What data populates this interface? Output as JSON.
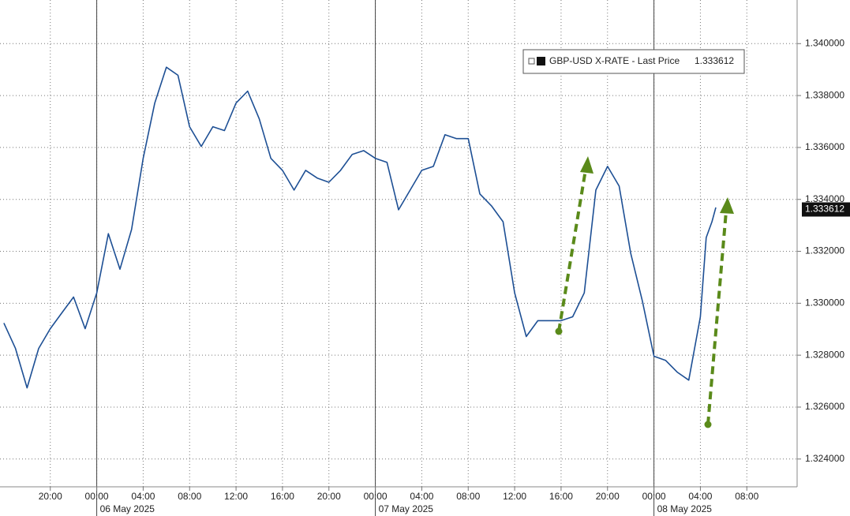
{
  "chart_data": {
    "type": "line",
    "x": [
      "2025-05-05 16:00",
      "2025-05-05 17:00",
      "2025-05-05 18:00",
      "2025-05-05 19:00",
      "2025-05-05 20:00",
      "2025-05-05 21:00",
      "2025-05-05 22:00",
      "2025-05-05 23:00",
      "2025-05-06 00:00",
      "2025-05-06 01:00",
      "2025-05-06 02:00",
      "2025-05-06 03:00",
      "2025-05-06 04:00",
      "2025-05-06 05:00",
      "2025-05-06 06:00",
      "2025-05-06 07:00",
      "2025-05-06 08:00",
      "2025-05-06 09:00",
      "2025-05-06 10:00",
      "2025-05-06 11:00",
      "2025-05-06 12:00",
      "2025-05-06 13:00",
      "2025-05-06 14:00",
      "2025-05-06 15:00",
      "2025-05-06 16:00",
      "2025-05-06 17:00",
      "2025-05-06 18:00",
      "2025-05-06 19:00",
      "2025-05-06 20:00",
      "2025-05-06 21:00",
      "2025-05-06 22:00",
      "2025-05-06 23:00",
      "2025-05-07 00:00",
      "2025-05-07 01:00",
      "2025-05-07 02:00",
      "2025-05-07 03:00",
      "2025-05-07 04:00",
      "2025-05-07 05:00",
      "2025-05-07 06:00",
      "2025-05-07 07:00",
      "2025-05-07 08:00",
      "2025-05-07 09:00",
      "2025-05-07 10:00",
      "2025-05-07 11:00",
      "2025-05-07 12:00",
      "2025-05-07 13:00",
      "2025-05-07 14:00",
      "2025-05-07 15:00",
      "2025-05-07 16:00",
      "2025-05-07 17:00",
      "2025-05-07 18:00",
      "2025-05-07 19:00",
      "2025-05-07 20:00",
      "2025-05-07 21:00",
      "2025-05-07 22:00",
      "2025-05-07 23:00",
      "2025-05-08 00:00",
      "2025-05-08 01:00",
      "2025-05-08 02:00",
      "2025-05-08 03:00",
      "2025-05-08 04:00",
      "2025-05-08 04:30",
      "2025-05-08 05:00",
      "2025-05-08 05:20"
    ],
    "series": [
      {
        "name": "GBP-USD X-RATE - Last Price",
        "color": "#1d4f94",
        "values": [
          1.32924,
          1.32826,
          1.32674,
          1.32826,
          1.32902,
          1.32963,
          1.33024,
          1.32902,
          1.3304,
          1.33268,
          1.33131,
          1.33284,
          1.33558,
          1.33771,
          1.33909,
          1.33878,
          1.3368,
          1.33604,
          1.3368,
          1.33665,
          1.33771,
          1.33817,
          1.3371,
          1.33558,
          1.33512,
          1.33436,
          1.33512,
          1.33482,
          1.33466,
          1.33512,
          1.33573,
          1.33588,
          1.33558,
          1.33543,
          1.3336,
          1.33436,
          1.33512,
          1.33527,
          1.33649,
          1.33634,
          1.33634,
          1.33421,
          1.33375,
          1.33314,
          1.3304,
          1.32872,
          1.32933,
          1.32933,
          1.32933,
          1.32948,
          1.3304,
          1.33436,
          1.33527,
          1.33451,
          1.33192,
          1.33009,
          1.32796,
          1.3278,
          1.32735,
          1.32704,
          1.32948,
          1.33253,
          1.33314,
          1.33369
        ]
      }
    ],
    "last_price": 1.333612,
    "xlim": [
      "2025-05-05 15:40",
      "2025-05-08 12:20"
    ],
    "xticks": [
      {
        "value": "2025-05-05 20:00",
        "label": "20:00"
      },
      {
        "value": "2025-05-06 00:00",
        "label": "00:00"
      },
      {
        "value": "2025-05-06 04:00",
        "label": "04:00"
      },
      {
        "value": "2025-05-06 08:00",
        "label": "08:00"
      },
      {
        "value": "2025-05-06 12:00",
        "label": "12:00"
      },
      {
        "value": "2025-05-06 16:00",
        "label": "16:00"
      },
      {
        "value": "2025-05-06 20:00",
        "label": "20:00"
      },
      {
        "value": "2025-05-07 00:00",
        "label": "00:00"
      },
      {
        "value": "2025-05-07 04:00",
        "label": "04:00"
      },
      {
        "value": "2025-05-07 08:00",
        "label": "08:00"
      },
      {
        "value": "2025-05-07 12:00",
        "label": "12:00"
      },
      {
        "value": "2025-05-07 16:00",
        "label": "16:00"
      },
      {
        "value": "2025-05-07 20:00",
        "label": "20:00"
      },
      {
        "value": "2025-05-08 00:00",
        "label": "00:00"
      },
      {
        "value": "2025-05-08 04:00",
        "label": "04:00"
      },
      {
        "value": "2025-05-08 08:00",
        "label": "08:00"
      }
    ],
    "date_labels": [
      {
        "value": "2025-05-06 00:00",
        "label": "06 May 2025"
      },
      {
        "value": "2025-05-07 00:00",
        "label": "07 May 2025"
      },
      {
        "value": "2025-05-08 00:00",
        "label": "08 May 2025"
      }
    ],
    "ylim": [
      1.32293,
      1.34168
    ],
    "yticks": [
      {
        "value": 1.324,
        "label": "1.324000"
      },
      {
        "value": 1.326,
        "label": "1.326000"
      },
      {
        "value": 1.328,
        "label": "1.328000"
      },
      {
        "value": 1.33,
        "label": "1.330000"
      },
      {
        "value": 1.332,
        "label": "1.332000"
      },
      {
        "value": 1.334,
        "label": "1.334000"
      },
      {
        "value": 1.336,
        "label": "1.336000"
      },
      {
        "value": 1.338,
        "label": "1.338000"
      },
      {
        "value": 1.34,
        "label": "1.340000"
      }
    ],
    "grid": true
  }
}
